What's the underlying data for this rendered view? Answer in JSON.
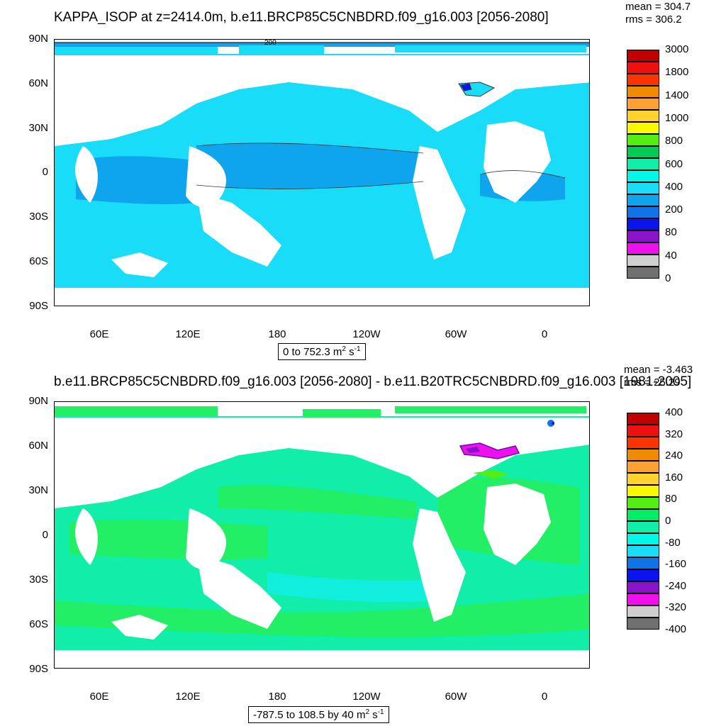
{
  "top": {
    "title": "KAPPA_ISOP at z=2414.0m, b.e11.BRCP85C5CNBDRD.f09_g16.003 [2056-2080]",
    "mean": "mean = 304.7",
    "rms": "rms = 306.2",
    "contour_label": "200",
    "range_text": "0 to 752.3",
    "units_base": "m",
    "units_exp1": "2",
    "units_mid": " s",
    "units_exp2": "-1",
    "y_labels": [
      "90N",
      "60N",
      "30N",
      "0",
      "30S",
      "60S",
      "90S"
    ],
    "x_labels": [
      "60E",
      "120E",
      "180",
      "120W",
      "60W",
      "0"
    ],
    "colorbar": {
      "labels": [
        "3000",
        "1800",
        "1400",
        "1000",
        "800",
        "600",
        "400",
        "200",
        "80",
        "40",
        "0"
      ],
      "colors": [
        "#c00000",
        "#ee1111",
        "#ff3300",
        "#f08a00",
        "#ffa032",
        "#ffd230",
        "#f8f800",
        "#55ee11",
        "#00cc55",
        "#11eeaa",
        "#00f8e8",
        "#19ddf8",
        "#0fa5ee",
        "#1173e8",
        "#0a14ee",
        "#8a12c8",
        "#ee11ee",
        "#cfcfcf",
        "#707070"
      ]
    },
    "ocean_colors": {
      "main": "#19ddf8",
      "band": "#0fa5ee"
    }
  },
  "bottom": {
    "title": "b.e11.BRCP85C5CNBDRD.f09_g16.003 [2056-2080] - b.e11.B20TRC5CNBDRD.f09_g16.003 [1981-2005]",
    "mean": "mean = -3.463",
    "rms": "rms = 25.29",
    "range_text": "-787.5 to 108.5 by 40",
    "units_base": "m",
    "units_exp1": "2",
    "units_mid": " s",
    "units_exp2": "-1",
    "y_labels": [
      "90N",
      "60N",
      "30N",
      "0",
      "30S",
      "60S",
      "90S"
    ],
    "x_labels": [
      "60E",
      "120E",
      "180",
      "120W",
      "60W",
      "0"
    ],
    "colorbar": {
      "labels": [
        "400",
        "320",
        "240",
        "160",
        "80",
        "0",
        "-80",
        "-160",
        "-240",
        "-320",
        "-400"
      ],
      "colors": [
        "#c00000",
        "#ee1111",
        "#ff3300",
        "#f08a00",
        "#ffa032",
        "#ffd230",
        "#f8f800",
        "#55ee11",
        "#00ee66",
        "#11eeaa",
        "#00f8e8",
        "#19ddf8",
        "#1173e8",
        "#0a14ee",
        "#8a12c8",
        "#ee11ee",
        "#cfcfcf",
        "#707070"
      ]
    },
    "ocean_colors": {
      "main": "#11eeaa",
      "band": "#22ee66",
      "light": "#11eedd"
    }
  }
}
